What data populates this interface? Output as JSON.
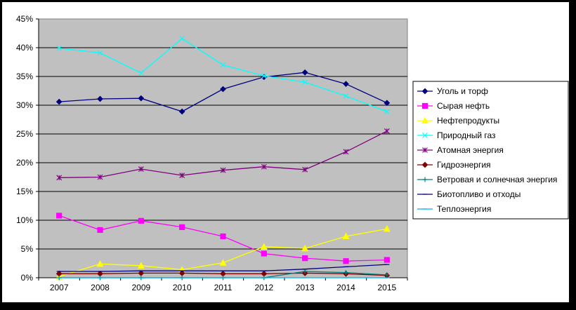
{
  "chart_data": {
    "type": "line",
    "title": "",
    "xlabel": "",
    "ylabel": "",
    "ylim": [
      0,
      45
    ],
    "y_ticks": [
      "0%",
      "5%",
      "10%",
      "15%",
      "20%",
      "25%",
      "30%",
      "35%",
      "40%",
      "45%"
    ],
    "categories": [
      "2007",
      "2008",
      "2009",
      "2010",
      "2011",
      "2012",
      "2013",
      "2014",
      "2015"
    ],
    "grid": "horizontal",
    "legend_position": "right",
    "plot_background": "#c0c0c0",
    "series": [
      {
        "name": "Уголь и торф",
        "color": "#000080",
        "marker": "diamond",
        "values": [
          30.6,
          31.1,
          31.2,
          28.9,
          32.8,
          34.9,
          35.7,
          33.7,
          30.4
        ]
      },
      {
        "name": "Сырая нефть",
        "color": "#ff00ff",
        "marker": "square",
        "values": [
          10.8,
          8.3,
          9.9,
          8.8,
          7.2,
          4.2,
          3.4,
          2.9,
          3.1
        ]
      },
      {
        "name": "Нефтепродукты",
        "color": "#ffff00",
        "marker": "triangle",
        "values": [
          0.2,
          2.4,
          2.1,
          1.4,
          2.6,
          5.4,
          5.1,
          7.2,
          8.5
        ]
      },
      {
        "name": "Природный газ",
        "color": "#00ffff",
        "marker": "x",
        "values": [
          39.9,
          39.1,
          35.6,
          41.6,
          37.0,
          35.1,
          34.0,
          31.6,
          28.9
        ]
      },
      {
        "name": "Атомная энергия",
        "color": "#800080",
        "marker": "star",
        "values": [
          17.4,
          17.5,
          18.9,
          17.8,
          18.7,
          19.3,
          18.8,
          21.9,
          25.5
        ]
      },
      {
        "name": "Гидроэнергия",
        "color": "#800000",
        "marker": "diamond",
        "values": [
          0.7,
          0.7,
          0.8,
          0.8,
          0.7,
          0.7,
          0.8,
          0.7,
          0.4
        ]
      },
      {
        "name": "Ветровая и солнечная энергия",
        "color": "#008080",
        "marker": "plus",
        "values": [
          0.0,
          0.0,
          0.0,
          0.0,
          0.0,
          0.0,
          1.1,
          0.9,
          0.5
        ]
      },
      {
        "name": "Биотопливо и отходы",
        "color": "#000080",
        "marker": "dash",
        "values": [
          1.1,
          1.1,
          1.2,
          1.2,
          1.2,
          1.2,
          1.5,
          1.9,
          2.3
        ]
      },
      {
        "name": "Теплоэнергия",
        "color": "#00b0f0",
        "marker": "dash",
        "values": [
          0.0,
          0.0,
          0.0,
          0.0,
          0.0,
          0.0,
          0.0,
          0.0,
          0.0
        ]
      }
    ]
  }
}
